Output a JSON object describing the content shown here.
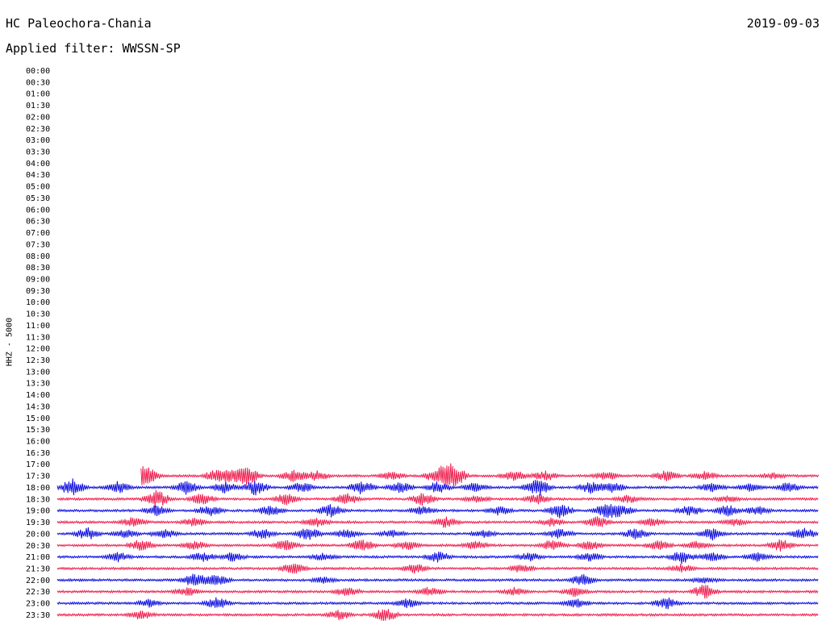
{
  "header": {
    "station": "HC Paleochora-Chania",
    "date": "2019-09-03",
    "filter_label": "Applied filter: WWSSN-SP"
  },
  "chart_data": {
    "type": "line",
    "chart_kind": "helicorder",
    "ylabel": "HHZ - 5000",
    "row_labels": [
      "00:00",
      "00:30",
      "01:00",
      "01:30",
      "02:00",
      "02:30",
      "03:00",
      "03:30",
      "04:00",
      "04:30",
      "05:00",
      "05:30",
      "06:00",
      "06:30",
      "07:00",
      "07:30",
      "08:00",
      "08:30",
      "09:00",
      "09:30",
      "10:00",
      "10:30",
      "11:00",
      "11:30",
      "12:00",
      "12:30",
      "13:00",
      "13:30",
      "14:00",
      "14:30",
      "15:00",
      "15:30",
      "16:00",
      "16:30",
      "17:00",
      "17:30",
      "18:00",
      "18:30",
      "19:00",
      "19:30",
      "20:00",
      "20:30",
      "21:00",
      "21:30",
      "22:00",
      "22:30",
      "23:00",
      "23:30"
    ],
    "trace_colors": [
      "#ee1144",
      "#0000dd"
    ],
    "first_trace_row": "17:30",
    "first_trace_start_fraction": 0.11,
    "bursts": {
      "17:30": [
        [
          0.11,
          2.0
        ],
        [
          0.12,
          1.6
        ],
        [
          0.21,
          1.8
        ],
        [
          0.23,
          1.5
        ],
        [
          0.25,
          2.5
        ],
        [
          0.31,
          1.6
        ],
        [
          0.34,
          1.5
        ],
        [
          0.44,
          1.2
        ],
        [
          0.5,
          2.0
        ],
        [
          0.52,
          3.5
        ],
        [
          0.6,
          1.5
        ],
        [
          0.64,
          1.4
        ],
        [
          0.72,
          1.2
        ],
        [
          0.8,
          1.5
        ],
        [
          0.85,
          1.2
        ],
        [
          0.94,
          0.8
        ]
      ],
      "18:00": [
        [
          0.02,
          2.5
        ],
        [
          0.08,
          1.6
        ],
        [
          0.17,
          1.8
        ],
        [
          0.22,
          1.6
        ],
        [
          0.26,
          2.0
        ],
        [
          0.32,
          1.5
        ],
        [
          0.4,
          2.0
        ],
        [
          0.45,
          1.5
        ],
        [
          0.5,
          1.5
        ],
        [
          0.55,
          1.4
        ],
        [
          0.63,
          2.8
        ],
        [
          0.7,
          1.5
        ],
        [
          0.73,
          1.4
        ],
        [
          0.86,
          1.2
        ],
        [
          0.91,
          1.0
        ],
        [
          0.96,
          1.3
        ]
      ],
      "18:30": [
        [
          0.13,
          2.5
        ],
        [
          0.19,
          1.5
        ],
        [
          0.3,
          1.5
        ],
        [
          0.38,
          1.5
        ],
        [
          0.48,
          1.8
        ],
        [
          0.55,
          1.0
        ],
        [
          0.63,
          1.3
        ],
        [
          0.75,
          1.0
        ],
        [
          0.88,
          0.8
        ]
      ],
      "19:00": [
        [
          0.13,
          1.5
        ],
        [
          0.2,
          1.5
        ],
        [
          0.28,
          1.4
        ],
        [
          0.36,
          1.8
        ],
        [
          0.48,
          1.2
        ],
        [
          0.58,
          1.3
        ],
        [
          0.66,
          2.0
        ],
        [
          0.72,
          1.8
        ],
        [
          0.74,
          1.6
        ],
        [
          0.83,
          1.4
        ],
        [
          0.88,
          1.5
        ],
        [
          0.92,
          1.2
        ]
      ],
      "19:30": [
        [
          0.1,
          1.4
        ],
        [
          0.18,
          1.2
        ],
        [
          0.34,
          1.2
        ],
        [
          0.51,
          1.5
        ],
        [
          0.65,
          1.1
        ],
        [
          0.71,
          1.5
        ],
        [
          0.78,
          1.1
        ],
        [
          0.89,
          0.9
        ]
      ],
      "20:00": [
        [
          0.04,
          1.6
        ],
        [
          0.09,
          1.2
        ],
        [
          0.14,
          1.2
        ],
        [
          0.27,
          1.4
        ],
        [
          0.33,
          1.8
        ],
        [
          0.38,
          1.2
        ],
        [
          0.44,
          1.0
        ],
        [
          0.56,
          1.0
        ],
        [
          0.66,
          1.4
        ],
        [
          0.76,
          1.6
        ],
        [
          0.86,
          1.6
        ],
        [
          0.98,
          1.5
        ]
      ],
      "20:30": [
        [
          0.11,
          1.6
        ],
        [
          0.18,
          1.2
        ],
        [
          0.3,
          1.4
        ],
        [
          0.4,
          1.6
        ],
        [
          0.46,
          1.2
        ],
        [
          0.55,
          1.1
        ],
        [
          0.65,
          1.5
        ],
        [
          0.7,
          1.4
        ],
        [
          0.79,
          1.3
        ],
        [
          0.84,
          1.1
        ],
        [
          0.95,
          1.5
        ]
      ],
      "21:00": [
        [
          0.08,
          1.2
        ],
        [
          0.19,
          1.4
        ],
        [
          0.23,
          1.2
        ],
        [
          0.35,
          1.0
        ],
        [
          0.5,
          1.4
        ],
        [
          0.62,
          1.1
        ],
        [
          0.7,
          1.2
        ],
        [
          0.82,
          1.8
        ],
        [
          0.86,
          1.2
        ],
        [
          0.92,
          1.2
        ]
      ],
      "21:30": [
        [
          0.31,
          1.5
        ],
        [
          0.47,
          1.3
        ],
        [
          0.61,
          1.2
        ],
        [
          0.82,
          1.1
        ]
      ],
      "22:00": [
        [
          0.18,
          1.8
        ],
        [
          0.21,
          1.6
        ],
        [
          0.35,
          0.8
        ],
        [
          0.69,
          1.5
        ],
        [
          0.85,
          0.8
        ]
      ],
      "22:30": [
        [
          0.17,
          1.2
        ],
        [
          0.38,
          1.3
        ],
        [
          0.49,
          1.2
        ],
        [
          0.6,
          1.1
        ],
        [
          0.68,
          1.2
        ],
        [
          0.85,
          2.0
        ]
      ],
      "23:00": [
        [
          0.12,
          1.0
        ],
        [
          0.21,
          1.5
        ],
        [
          0.46,
          1.2
        ],
        [
          0.68,
          1.3
        ],
        [
          0.8,
          1.5
        ]
      ],
      "23:30": [
        [
          0.11,
          1.2
        ],
        [
          0.37,
          1.3
        ],
        [
          0.43,
          1.8
        ]
      ]
    }
  }
}
